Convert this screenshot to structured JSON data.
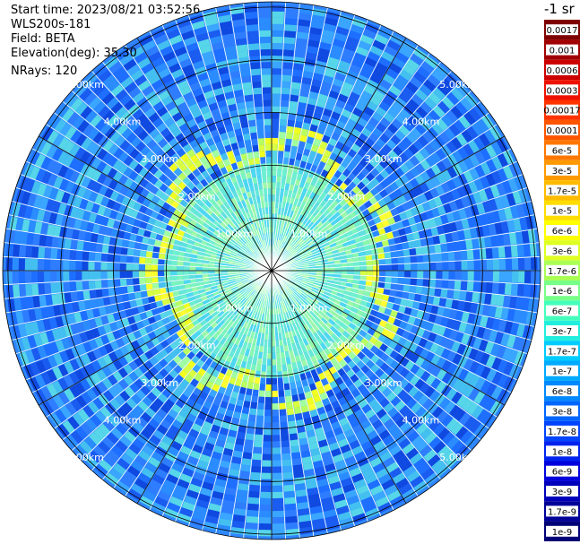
{
  "info": {
    "start_time": "Start time: 2023/08/21 03:52:56",
    "instrument": "WLS200s-181",
    "field": "Field: BETA",
    "elevation": "Elevation(deg): 35.30",
    "nrays": "NRays: 120"
  },
  "ppi": {
    "range_labels": [
      "1.00km",
      "2.00km",
      "3.00km",
      "4.00km",
      "5.00km"
    ],
    "range_km": [
      1,
      2,
      3,
      4,
      5
    ],
    "max_range_km": 5.1,
    "spokes": 12,
    "n_rays": 120,
    "ring_feature_km": 2.25
  },
  "colorbar": {
    "unit": "-1 sr",
    "labels": [
      "0.0017",
      "0.001",
      "0.0006",
      "0.0003",
      "0.00017",
      "0.0001",
      "6e-5",
      "3e-5",
      "1.7e-5",
      "1e-5",
      "6e-6",
      "3e-6",
      "1.7e-6",
      "1e-6",
      "6e-7",
      "3e-7",
      "1.7e-7",
      "1e-7",
      "6e-8",
      "3e-8",
      "1.7e-8",
      "1e-8",
      "6e-9",
      "3e-9",
      "1.7e-9",
      "1e-9"
    ],
    "colors": [
      "#7f0000",
      "#a00000",
      "#cc0000",
      "#ee1100",
      "#ff3300",
      "#ff5500",
      "#ff7700",
      "#ff9900",
      "#ffbb00",
      "#ffdd00",
      "#ffff00",
      "#ddff22",
      "#aaff55",
      "#77ff88",
      "#44ffbb",
      "#22eedd",
      "#00ccff",
      "#00aaff",
      "#0088ff",
      "#0066ff",
      "#0044ff",
      "#0022ee",
      "#0000dd",
      "#0000bb",
      "#000099",
      "#000077"
    ]
  }
}
